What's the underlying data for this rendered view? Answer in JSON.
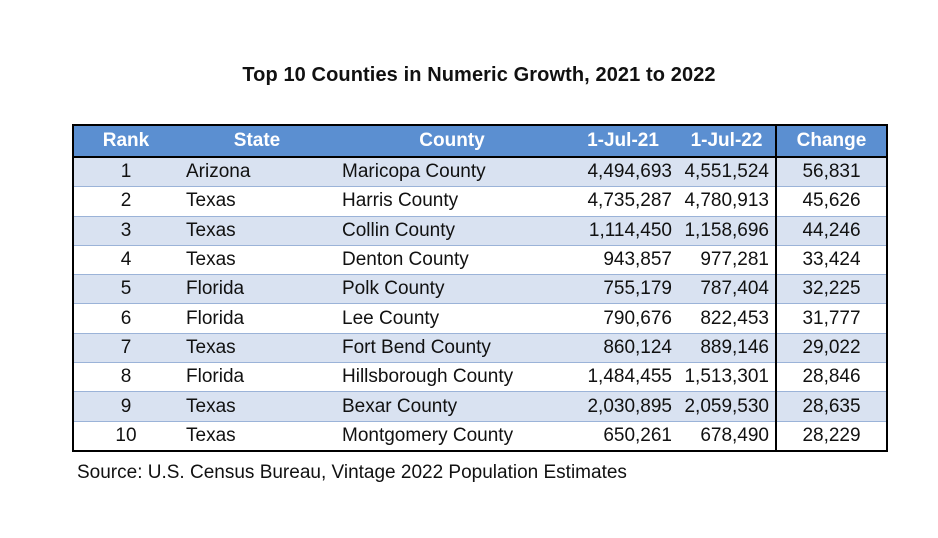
{
  "title": "Top 10 Counties in Numeric Growth, 2021 to 2022",
  "table": {
    "headers": [
      "Rank",
      "State",
      "County",
      "1-Jul-21",
      "1-Jul-22",
      "Change"
    ],
    "rows": [
      [
        "1",
        "Arizona",
        "Maricopa County",
        "4,494,693",
        "4,551,524",
        "56,831"
      ],
      [
        "2",
        "Texas",
        "Harris County",
        "4,735,287",
        "4,780,913",
        "45,626"
      ],
      [
        "3",
        "Texas",
        "Collin County",
        "1,114,450",
        "1,158,696",
        "44,246"
      ],
      [
        "4",
        "Texas",
        "Denton County",
        "943,857",
        "977,281",
        "33,424"
      ],
      [
        "5",
        "Florida",
        "Polk County",
        "755,179",
        "787,404",
        "32,225"
      ],
      [
        "6",
        "Florida",
        "Lee County",
        "790,676",
        "822,453",
        "31,777"
      ],
      [
        "7",
        "Texas",
        "Fort Bend County",
        "860,124",
        "889,146",
        "29,022"
      ],
      [
        "8",
        "Florida",
        "Hillsborough County",
        "1,484,455",
        "1,513,301",
        "28,846"
      ],
      [
        "9",
        "Texas",
        "Bexar County",
        "2,030,895",
        "2,059,530",
        "28,635"
      ],
      [
        "10",
        "Texas",
        "Montgomery County",
        "650,261",
        "678,490",
        "28,229"
      ]
    ]
  },
  "source": "Source: U.S. Census Bureau, Vintage 2022 Population Estimates",
  "colors": {
    "header_bg": "#5b8fd1",
    "band_bg": "#d9e2f1"
  }
}
